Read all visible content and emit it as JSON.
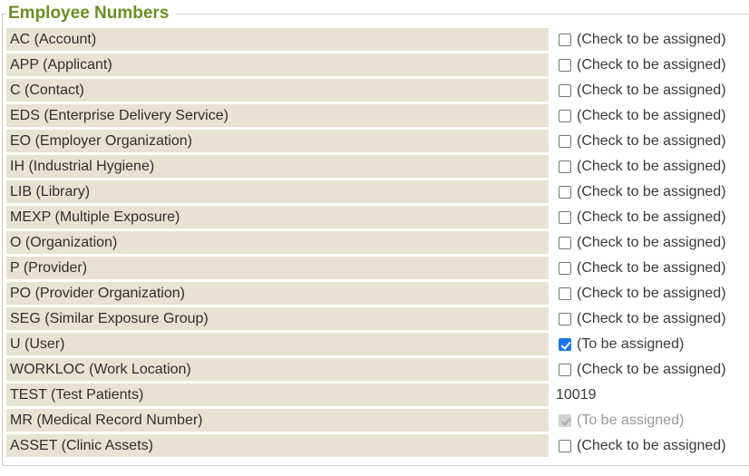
{
  "section": {
    "legend": "Employee Numbers"
  },
  "colors": {
    "legend_green": "#6b8e23",
    "row_beige": "#e7e2d2",
    "checkbox_checked_blue": "#1a73e8",
    "checkbox_disabled_gray": "#d2d2d2",
    "fieldset_border": "#cfccc3"
  },
  "rows": [
    {
      "label": "AC (Account)",
      "type": "checkbox",
      "checked": false,
      "disabled": false,
      "text": "(Check to be assigned)"
    },
    {
      "label": "APP (Applicant)",
      "type": "checkbox",
      "checked": false,
      "disabled": false,
      "text": "(Check to be assigned)"
    },
    {
      "label": "C (Contact)",
      "type": "checkbox",
      "checked": false,
      "disabled": false,
      "text": "(Check to be assigned)"
    },
    {
      "label": "EDS (Enterprise Delivery Service)",
      "type": "checkbox",
      "checked": false,
      "disabled": false,
      "text": "(Check to be assigned)"
    },
    {
      "label": "EO (Employer Organization)",
      "type": "checkbox",
      "checked": false,
      "disabled": false,
      "text": "(Check to be assigned)"
    },
    {
      "label": "IH (Industrial Hygiene)",
      "type": "checkbox",
      "checked": false,
      "disabled": false,
      "text": "(Check to be assigned)"
    },
    {
      "label": "LIB (Library)",
      "type": "checkbox",
      "checked": false,
      "disabled": false,
      "text": "(Check to be assigned)"
    },
    {
      "label": "MEXP (Multiple Exposure)",
      "type": "checkbox",
      "checked": false,
      "disabled": false,
      "text": "(Check to be assigned)"
    },
    {
      "label": "O (Organization)",
      "type": "checkbox",
      "checked": false,
      "disabled": false,
      "text": "(Check to be assigned)"
    },
    {
      "label": "P (Provider)",
      "type": "checkbox",
      "checked": false,
      "disabled": false,
      "text": "(Check to be assigned)"
    },
    {
      "label": "PO (Provider Organization)",
      "type": "checkbox",
      "checked": false,
      "disabled": false,
      "text": "(Check to be assigned)"
    },
    {
      "label": "SEG (Similar Exposure Group)",
      "type": "checkbox",
      "checked": false,
      "disabled": false,
      "text": "(Check to be assigned)"
    },
    {
      "label": "U (User)",
      "type": "checkbox",
      "checked": true,
      "disabled": false,
      "text": "(To be assigned)"
    },
    {
      "label": "WORKLOC (Work Location)",
      "type": "checkbox",
      "checked": false,
      "disabled": false,
      "text": "(Check to be assigned)"
    },
    {
      "label": "TEST (Test Patients)",
      "type": "value",
      "text": "10019"
    },
    {
      "label": "MR (Medical Record Number)",
      "type": "checkbox",
      "checked": true,
      "disabled": true,
      "text": "(To be assigned)"
    },
    {
      "label": "ASSET (Clinic Assets)",
      "type": "checkbox",
      "checked": false,
      "disabled": false,
      "text": "(Check to be assigned)"
    }
  ]
}
